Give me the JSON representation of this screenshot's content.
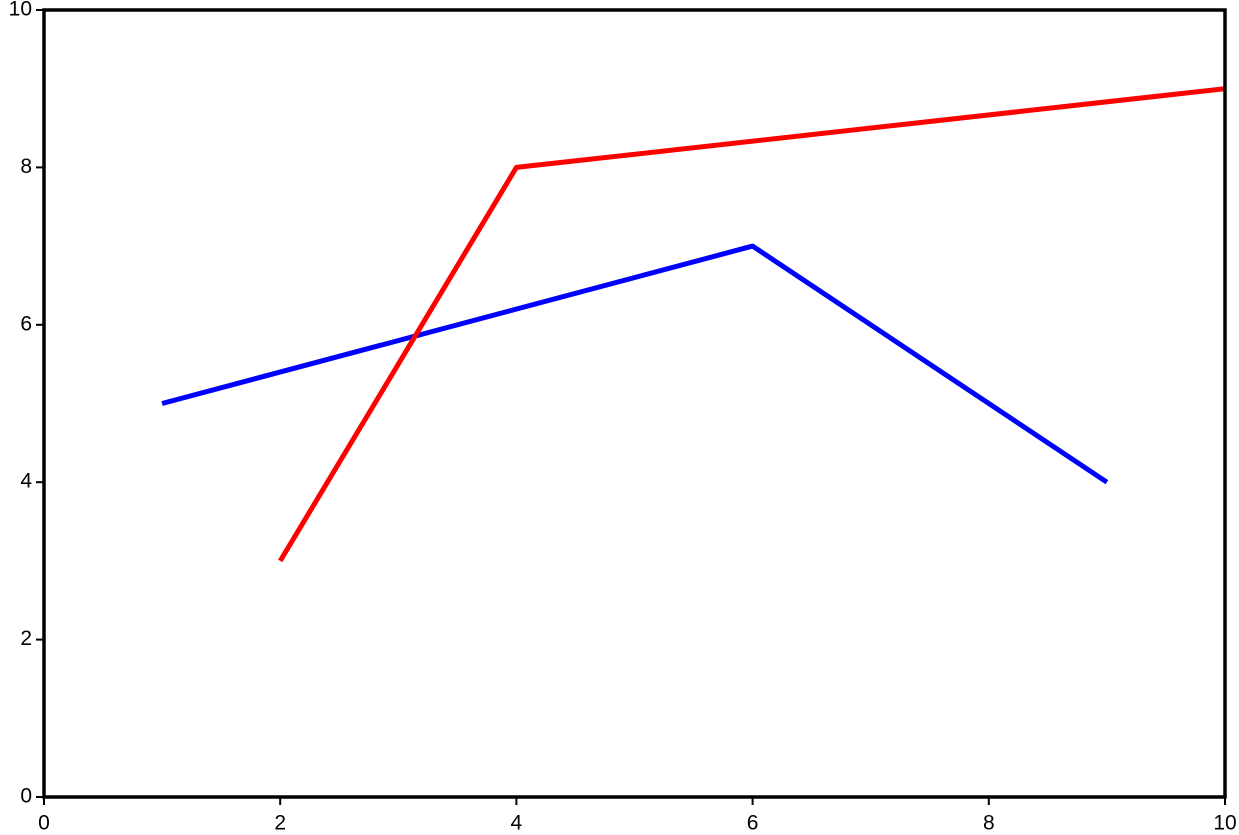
{
  "chart_data": {
    "type": "line",
    "series": [
      {
        "color": "#0000ff",
        "x": [
          1,
          6,
          9
        ],
        "values": [
          5,
          7,
          4
        ]
      },
      {
        "color": "#ff0000",
        "x": [
          2,
          4,
          10
        ],
        "values": [
          3,
          8,
          9
        ]
      }
    ],
    "xlim": [
      0,
      10
    ],
    "xticks": [
      0,
      2,
      4,
      6,
      8,
      10
    ],
    "ylim": [
      0,
      10
    ],
    "yticks": [
      0,
      2,
      4,
      6,
      8,
      10
    ],
    "grid": false
  }
}
